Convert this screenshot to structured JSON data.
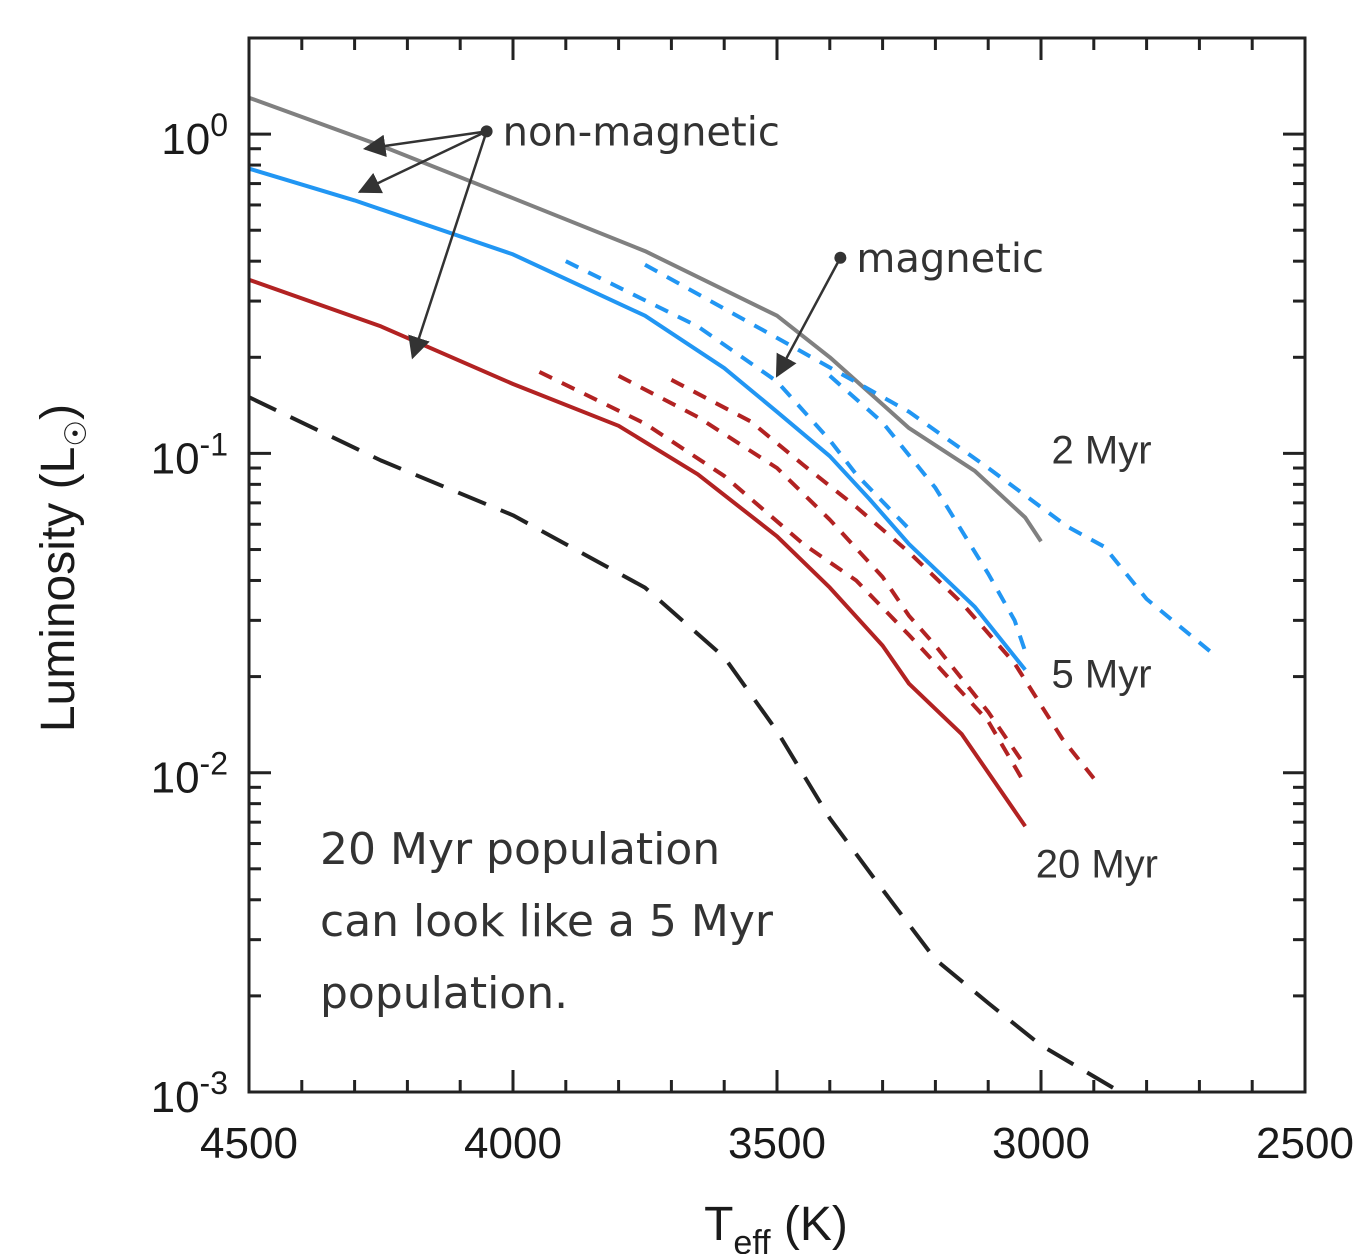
{
  "chart_data": {
    "type": "line",
    "xlabel": {
      "main": "T",
      "sub": "eff",
      "tail": " (K)"
    },
    "ylabel": {
      "main": "Luminosity (L",
      "sun": "☉",
      "tail": ")"
    },
    "xlim": [
      4500,
      2500
    ],
    "ylim": [
      0.001,
      2.0
    ],
    "yscale": "log",
    "x_ticks": [
      4500,
      4000,
      3500,
      3000,
      2500
    ],
    "x_tick_labels": [
      "4500",
      "4000",
      "3500",
      "3000",
      "2500"
    ],
    "y_ticks": [
      {
        "value": 1,
        "base": "10",
        "exp": "0"
      },
      {
        "value": 0.1,
        "base": "10",
        "exp": "-1"
      },
      {
        "value": 0.01,
        "base": "10",
        "exp": "-2"
      },
      {
        "value": 0.001,
        "base": "10",
        "exp": "-3"
      }
    ],
    "grid": false,
    "series": [
      {
        "color": "#808080",
        "dash": "solid",
        "x": [
          4500,
          4250,
          4000,
          3750,
          3500,
          3400,
          3325,
          3250,
          3125,
          3030,
          3000
        ],
        "y": [
          1.3,
          0.92,
          0.63,
          0.43,
          0.27,
          0.2,
          0.155,
          0.12,
          0.088,
          0.063,
          0.053
        ]
      },
      {
        "color": "#2196f3",
        "dash": "solid",
        "x": [
          4500,
          4300,
          4000,
          3750,
          3600,
          3500,
          3400,
          3325,
          3250,
          3125,
          3030
        ],
        "y": [
          0.78,
          0.62,
          0.42,
          0.27,
          0.185,
          0.135,
          0.098,
          0.072,
          0.052,
          0.033,
          0.021
        ]
      },
      {
        "color": "#b22222",
        "dash": "solid",
        "x": [
          4500,
          4250,
          4000,
          3800,
          3650,
          3500,
          3400,
          3300,
          3250,
          3150,
          3030
        ],
        "y": [
          0.35,
          0.25,
          0.165,
          0.122,
          0.086,
          0.055,
          0.038,
          0.025,
          0.019,
          0.0132,
          0.0068
        ]
      },
      {
        "color": "#2196f3",
        "dash": "dashed",
        "x": [
          3900,
          3650,
          3500,
          3400,
          3350,
          3250
        ],
        "y": [
          0.4,
          0.25,
          0.168,
          0.11,
          0.086,
          0.058
        ]
      },
      {
        "color": "#2196f3",
        "dash": "dashed",
        "x": [
          3750,
          3500,
          3250,
          3100,
          2950,
          2880,
          2800,
          2680
        ],
        "y": [
          0.39,
          0.23,
          0.135,
          0.09,
          0.059,
          0.051,
          0.035,
          0.024
        ]
      },
      {
        "color": "#2196f3",
        "dash": "dashed",
        "x": [
          3400,
          3300,
          3200,
          3100,
          3050,
          3030
        ],
        "y": [
          0.175,
          0.125,
          0.078,
          0.042,
          0.03,
          0.024
        ]
      },
      {
        "color": "#b22222",
        "dash": "dashed",
        "x": [
          3950,
          3750,
          3600,
          3450,
          3350,
          3250,
          3200,
          3100,
          3030
        ],
        "y": [
          0.18,
          0.124,
          0.085,
          0.052,
          0.04,
          0.027,
          0.022,
          0.0145,
          0.0092
        ]
      },
      {
        "color": "#b22222",
        "dash": "dashed",
        "x": [
          3800,
          3650,
          3500,
          3400,
          3300,
          3250,
          3200,
          3100,
          3030
        ],
        "y": [
          0.175,
          0.13,
          0.09,
          0.062,
          0.041,
          0.031,
          0.025,
          0.0155,
          0.0105
        ]
      },
      {
        "color": "#b22222",
        "dash": "dashed",
        "x": [
          3700,
          3550,
          3450,
          3350,
          3250,
          3150,
          3050,
          2960,
          2900
        ],
        "y": [
          0.17,
          0.126,
          0.092,
          0.068,
          0.049,
          0.034,
          0.022,
          0.0128,
          0.0096
        ]
      },
      {
        "color": "#222222",
        "dash": "longdash",
        "x": [
          4500,
          4250,
          4000,
          3750,
          3600,
          3500,
          3400,
          3300,
          3200,
          3100,
          3000,
          2850
        ],
        "y": [
          0.15,
          0.095,
          0.064,
          0.038,
          0.023,
          0.0135,
          0.0072,
          0.0043,
          0.0026,
          0.0019,
          0.0014,
          0.001
        ]
      }
    ],
    "series_labels": [
      {
        "text": "2 Myr",
        "x": 2980,
        "y": 0.093
      },
      {
        "text": "5 Myr",
        "x": 2980,
        "y": 0.0185
      },
      {
        "text": "20 Myr",
        "x": 3010,
        "y": 0.0047
      }
    ],
    "annotations": {
      "non_magnetic": {
        "text": "non-magnetic",
        "x": 4050,
        "y": 1.02,
        "targets": [
          {
            "x": 4280,
            "y": 0.9
          },
          {
            "x": 4290,
            "y": 0.66
          },
          {
            "x": 4190,
            "y": 0.2
          }
        ]
      },
      "magnetic": {
        "text": "magnetic",
        "x": 3380,
        "y": 0.41,
        "targets": [
          {
            "x": 3500,
            "y": 0.175
          }
        ]
      },
      "note": [
        "20 Myr population",
        "can look like a 5 Myr",
        "population."
      ]
    }
  }
}
